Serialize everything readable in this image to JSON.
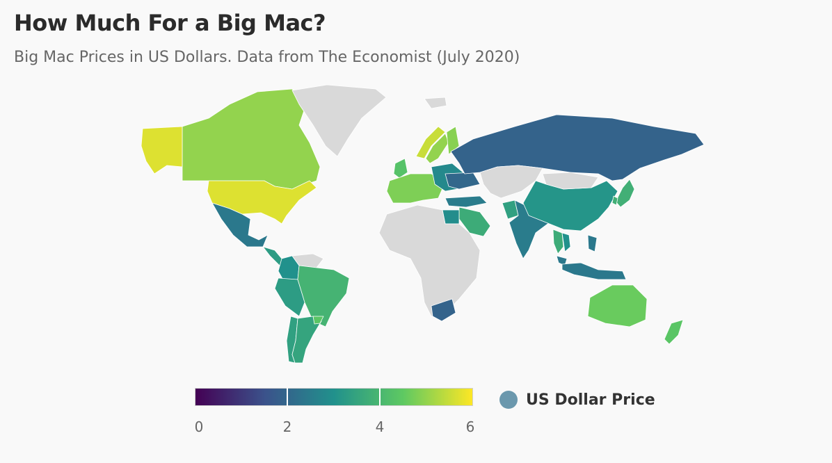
{
  "header": {
    "title": "How Much For a Big Mac?",
    "subtitle": "Big Mac Prices in US Dollars. Data from The Economist (July 2020)"
  },
  "legend": {
    "min": 0,
    "max": 6,
    "tick_labels": [
      "0",
      "2",
      "4",
      "6"
    ],
    "series_label": "US Dollar Price",
    "series_color": "#6b98ad",
    "gradient_colors": [
      "#440154",
      "#3b528b",
      "#21918c",
      "#5ec962",
      "#fde725"
    ]
  },
  "chart_data": {
    "type": "choropleth",
    "title": "How Much For a Big Mac?",
    "subtitle": "Big Mac Prices in US Dollars. Data from The Economist (July 2020)",
    "value_unit": "US Dollars",
    "color_scale": {
      "min": 0,
      "max": 6,
      "palette": "viridis"
    },
    "no_data_color": "#d9d9d9",
    "regions": [
      {
        "name": "Canada",
        "value": 5.0
      },
      {
        "name": "United States",
        "value": 5.7
      },
      {
        "name": "Alaska",
        "value": 5.7
      },
      {
        "name": "Greenland",
        "value": null
      },
      {
        "name": "Mexico",
        "value": 2.4
      },
      {
        "name": "Central America",
        "value": 3.3
      },
      {
        "name": "Colombia",
        "value": 3.0
      },
      {
        "name": "Venezuela",
        "value": null
      },
      {
        "name": "Peru",
        "value": 3.3
      },
      {
        "name": "Brazil",
        "value": 3.9
      },
      {
        "name": "Chile",
        "value": 3.4
      },
      {
        "name": "Argentina",
        "value": 3.5
      },
      {
        "name": "Uruguay",
        "value": 4.4
      },
      {
        "name": "United Kingdom",
        "value": 4.3
      },
      {
        "name": "Iceland",
        "value": null
      },
      {
        "name": "Western Europe",
        "value": 4.8
      },
      {
        "name": "Norway",
        "value": 5.5
      },
      {
        "name": "Sweden",
        "value": 5.0
      },
      {
        "name": "Finland",
        "value": 4.9
      },
      {
        "name": "Eastern Europe",
        "value": 2.8
      },
      {
        "name": "Ukraine",
        "value": 2.0
      },
      {
        "name": "Turkey",
        "value": 2.5
      },
      {
        "name": "Russia",
        "value": 1.9
      },
      {
        "name": "Central Asia",
        "value": null
      },
      {
        "name": "Saudi Arabia",
        "value": 3.7
      },
      {
        "name": "Egypt",
        "value": 2.9
      },
      {
        "name": "Africa",
        "value": null
      },
      {
        "name": "South Africa",
        "value": 1.9
      },
      {
        "name": "Pakistan",
        "value": 3.4
      },
      {
        "name": "India",
        "value": 2.5
      },
      {
        "name": "China",
        "value": 3.1
      },
      {
        "name": "Mongolia",
        "value": null
      },
      {
        "name": "Japan",
        "value": 3.8
      },
      {
        "name": "South Korea",
        "value": 3.8
      },
      {
        "name": "Thailand",
        "value": 3.7
      },
      {
        "name": "Vietnam",
        "value": 3.0
      },
      {
        "name": "Malaysia",
        "value": 2.4
      },
      {
        "name": "Indonesia",
        "value": 2.4
      },
      {
        "name": "Philippines",
        "value": 2.4
      },
      {
        "name": "Australia",
        "value": 4.6
      },
      {
        "name": "New Zealand",
        "value": 4.4
      }
    ]
  }
}
